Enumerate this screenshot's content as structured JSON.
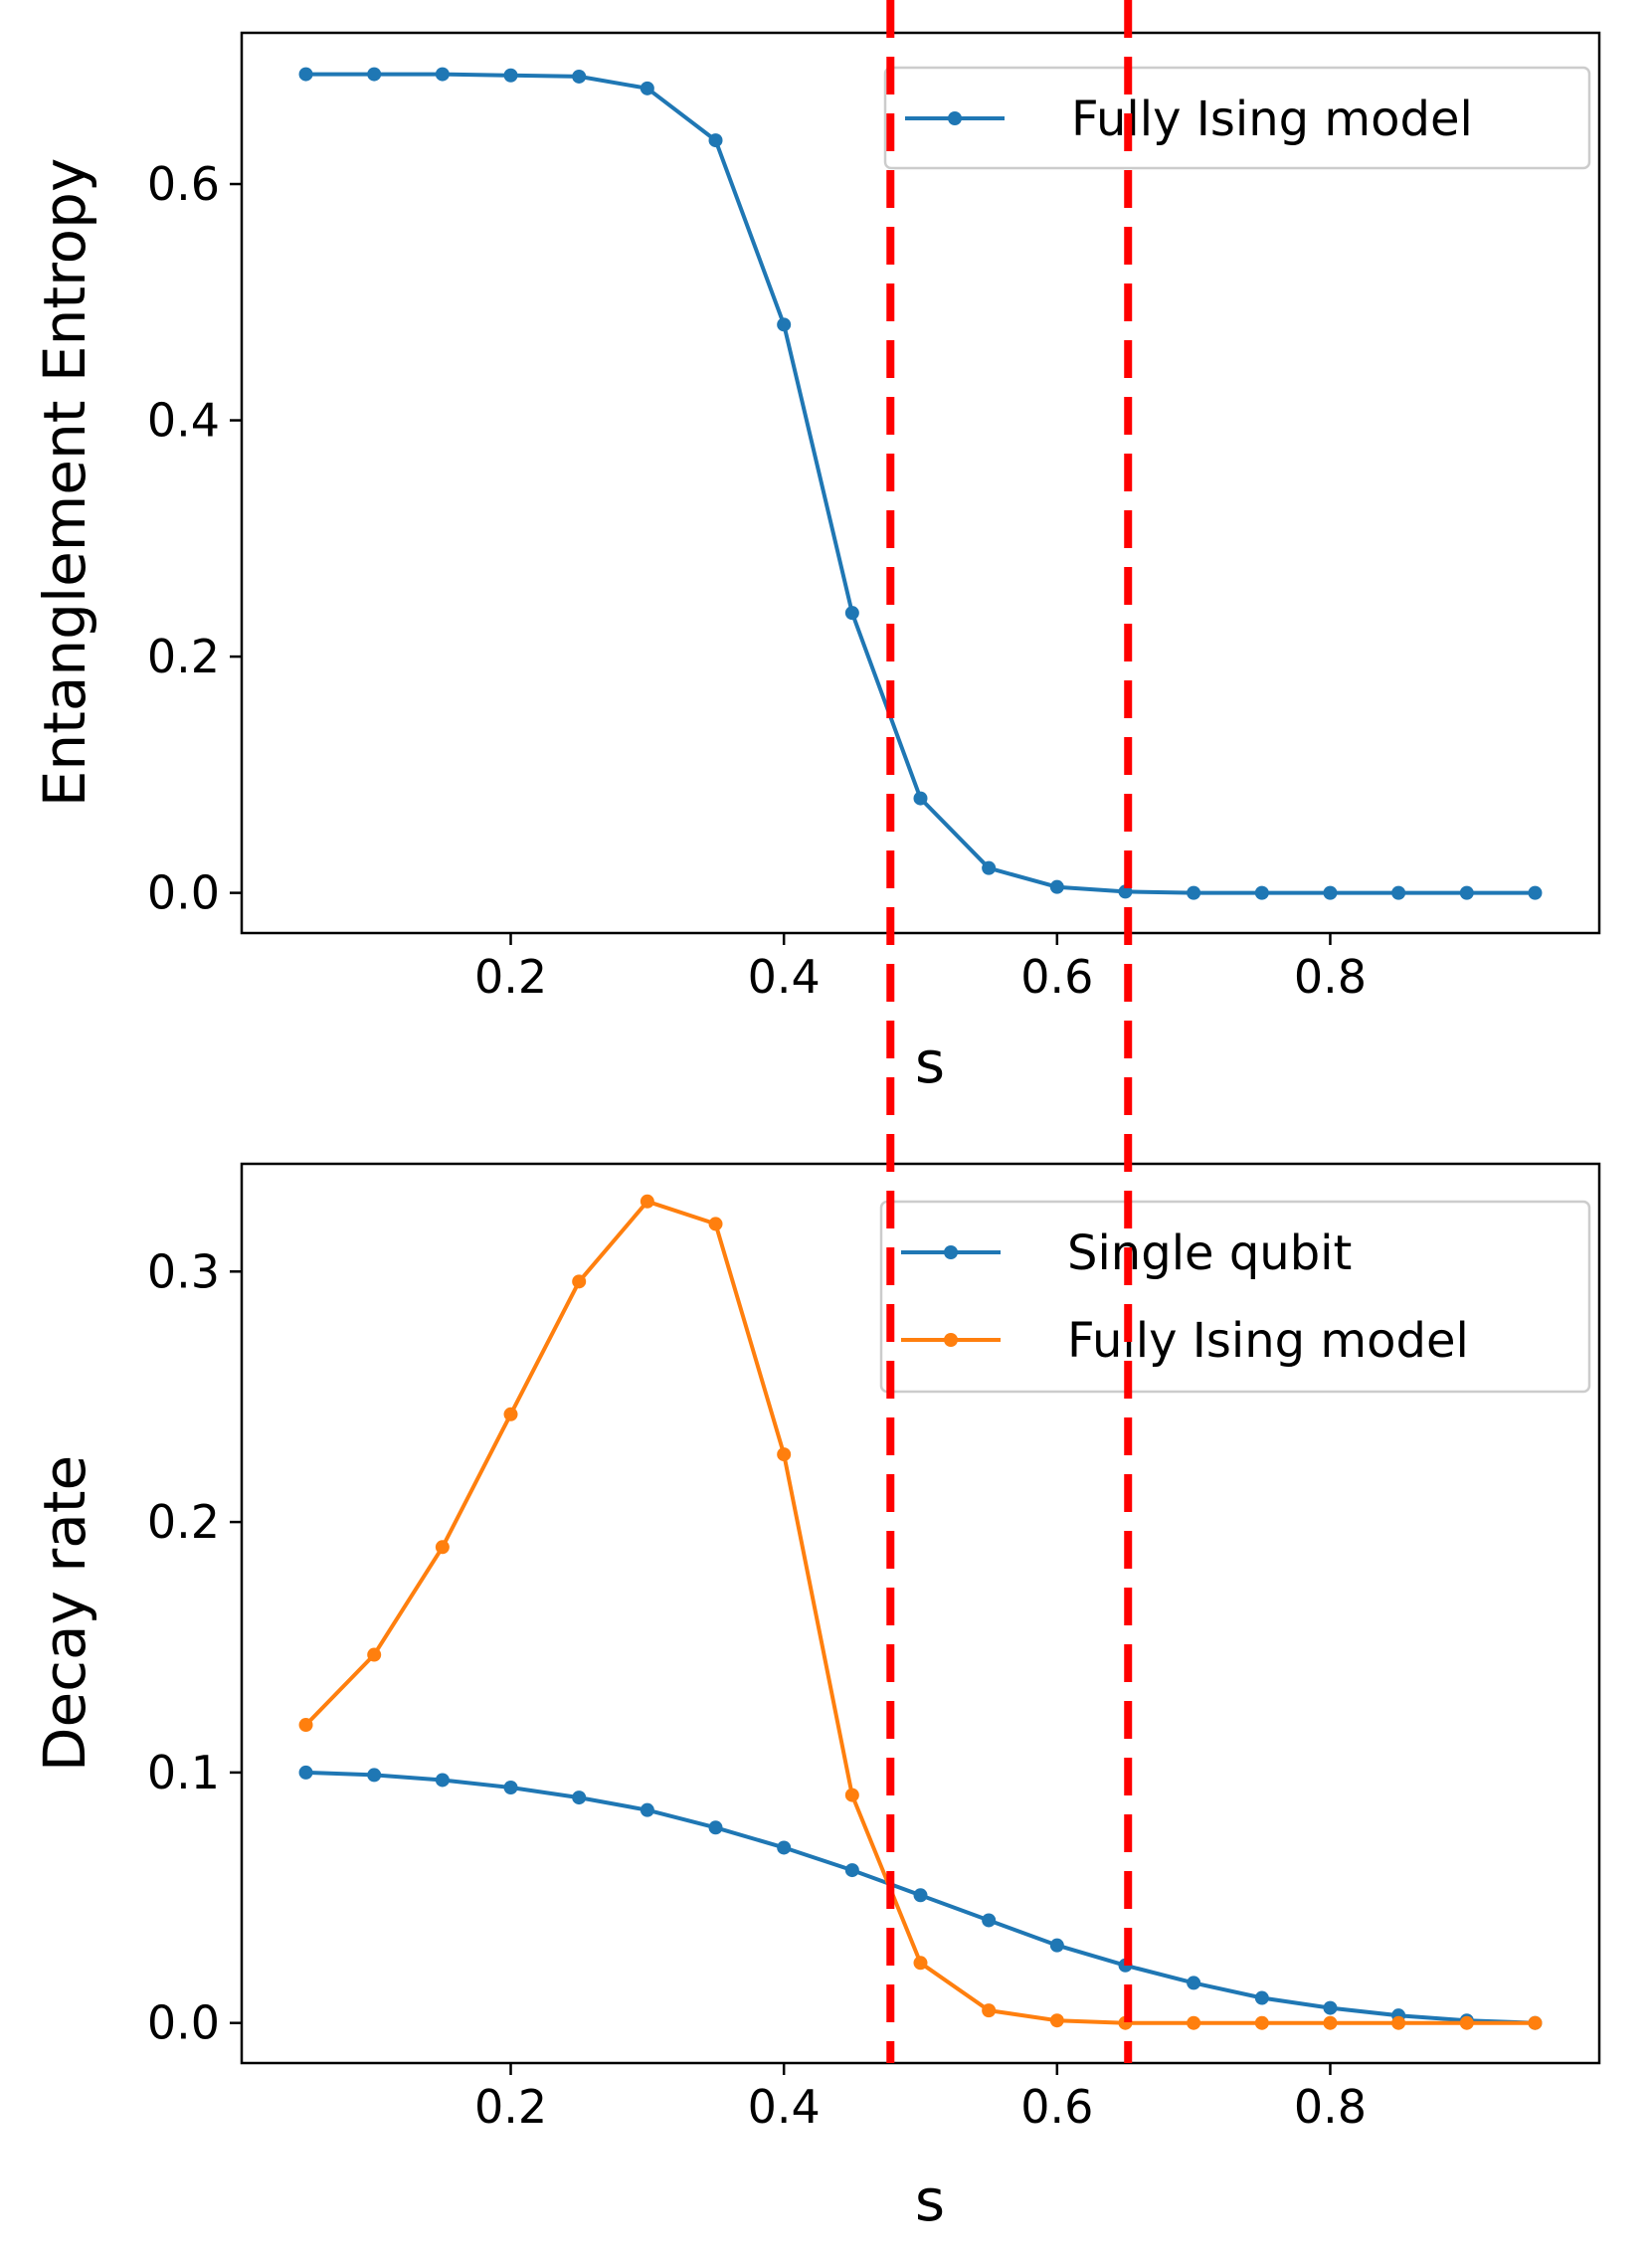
{
  "chart_data": [
    {
      "type": "line",
      "xlabel": "s",
      "ylabel": "Entanglement Entropy",
      "xlim": [
        0.003,
        0.997
      ],
      "ylim": [
        -0.034,
        0.728
      ],
      "xticks": [
        0.2,
        0.4,
        0.6,
        0.8
      ],
      "xtick_labels": [
        "0.2",
        "0.4",
        "0.6",
        "0.8"
      ],
      "yticks": [
        0.0,
        0.2,
        0.4,
        0.6
      ],
      "ytick_labels": [
        "0.0",
        "0.2",
        "0.4",
        "0.6"
      ],
      "legend_position": "top-right",
      "series": [
        {
          "name": "Fully Ising model",
          "color": "#1f77b4",
          "x": [
            0.05,
            0.1,
            0.15,
            0.2,
            0.25,
            0.3,
            0.35,
            0.4,
            0.45,
            0.5,
            0.55,
            0.6,
            0.65,
            0.7,
            0.75,
            0.8,
            0.85,
            0.9,
            0.95
          ],
          "y": [
            0.693,
            0.693,
            0.693,
            0.692,
            0.691,
            0.681,
            0.637,
            0.481,
            0.237,
            0.08,
            0.021,
            0.005,
            0.001,
            0.0,
            0.0,
            0.0,
            0.0,
            0.0,
            0.0
          ]
        }
      ],
      "vlines": [
        {
          "x": 0.478,
          "color": "#ff0000",
          "style": "dashed"
        },
        {
          "x": 0.652,
          "color": "#ff0000",
          "style": "dashed"
        }
      ]
    },
    {
      "type": "line",
      "xlabel": "s",
      "ylabel": "Decay rate",
      "xlim": [
        0.003,
        0.997
      ],
      "ylim": [
        -0.016,
        0.343
      ],
      "xticks": [
        0.2,
        0.4,
        0.6,
        0.8
      ],
      "xtick_labels": [
        "0.2",
        "0.4",
        "0.6",
        "0.8"
      ],
      "yticks": [
        0.0,
        0.1,
        0.2,
        0.3
      ],
      "ytick_labels": [
        "0.0",
        "0.1",
        "0.2",
        "0.3"
      ],
      "legend_position": "top-right",
      "series": [
        {
          "name": "Single qubit",
          "color": "#1f77b4",
          "x": [
            0.05,
            0.1,
            0.15,
            0.2,
            0.25,
            0.3,
            0.35,
            0.4,
            0.45,
            0.5,
            0.55,
            0.6,
            0.65,
            0.7,
            0.75,
            0.8,
            0.85,
            0.9,
            0.95
          ],
          "y": [
            0.1,
            0.099,
            0.097,
            0.094,
            0.09,
            0.085,
            0.078,
            0.07,
            0.061,
            0.051,
            0.041,
            0.031,
            0.023,
            0.016,
            0.01,
            0.006,
            0.003,
            0.001,
            0.0
          ]
        },
        {
          "name": "Fully Ising model",
          "color": "#ff7f0e",
          "x": [
            0.05,
            0.1,
            0.15,
            0.2,
            0.25,
            0.3,
            0.35,
            0.4,
            0.45,
            0.5,
            0.55,
            0.6,
            0.65,
            0.7,
            0.75,
            0.8,
            0.85,
            0.9,
            0.95
          ],
          "y": [
            0.119,
            0.147,
            0.19,
            0.243,
            0.296,
            0.328,
            0.319,
            0.227,
            0.091,
            0.024,
            0.005,
            0.001,
            0.0,
            0.0,
            0.0,
            0.0,
            0.0,
            0.0,
            0.0
          ]
        }
      ],
      "vlines": [
        {
          "x": 0.478,
          "color": "#ff0000",
          "style": "dashed"
        },
        {
          "x": 0.652,
          "color": "#ff0000",
          "style": "dashed"
        }
      ]
    }
  ]
}
